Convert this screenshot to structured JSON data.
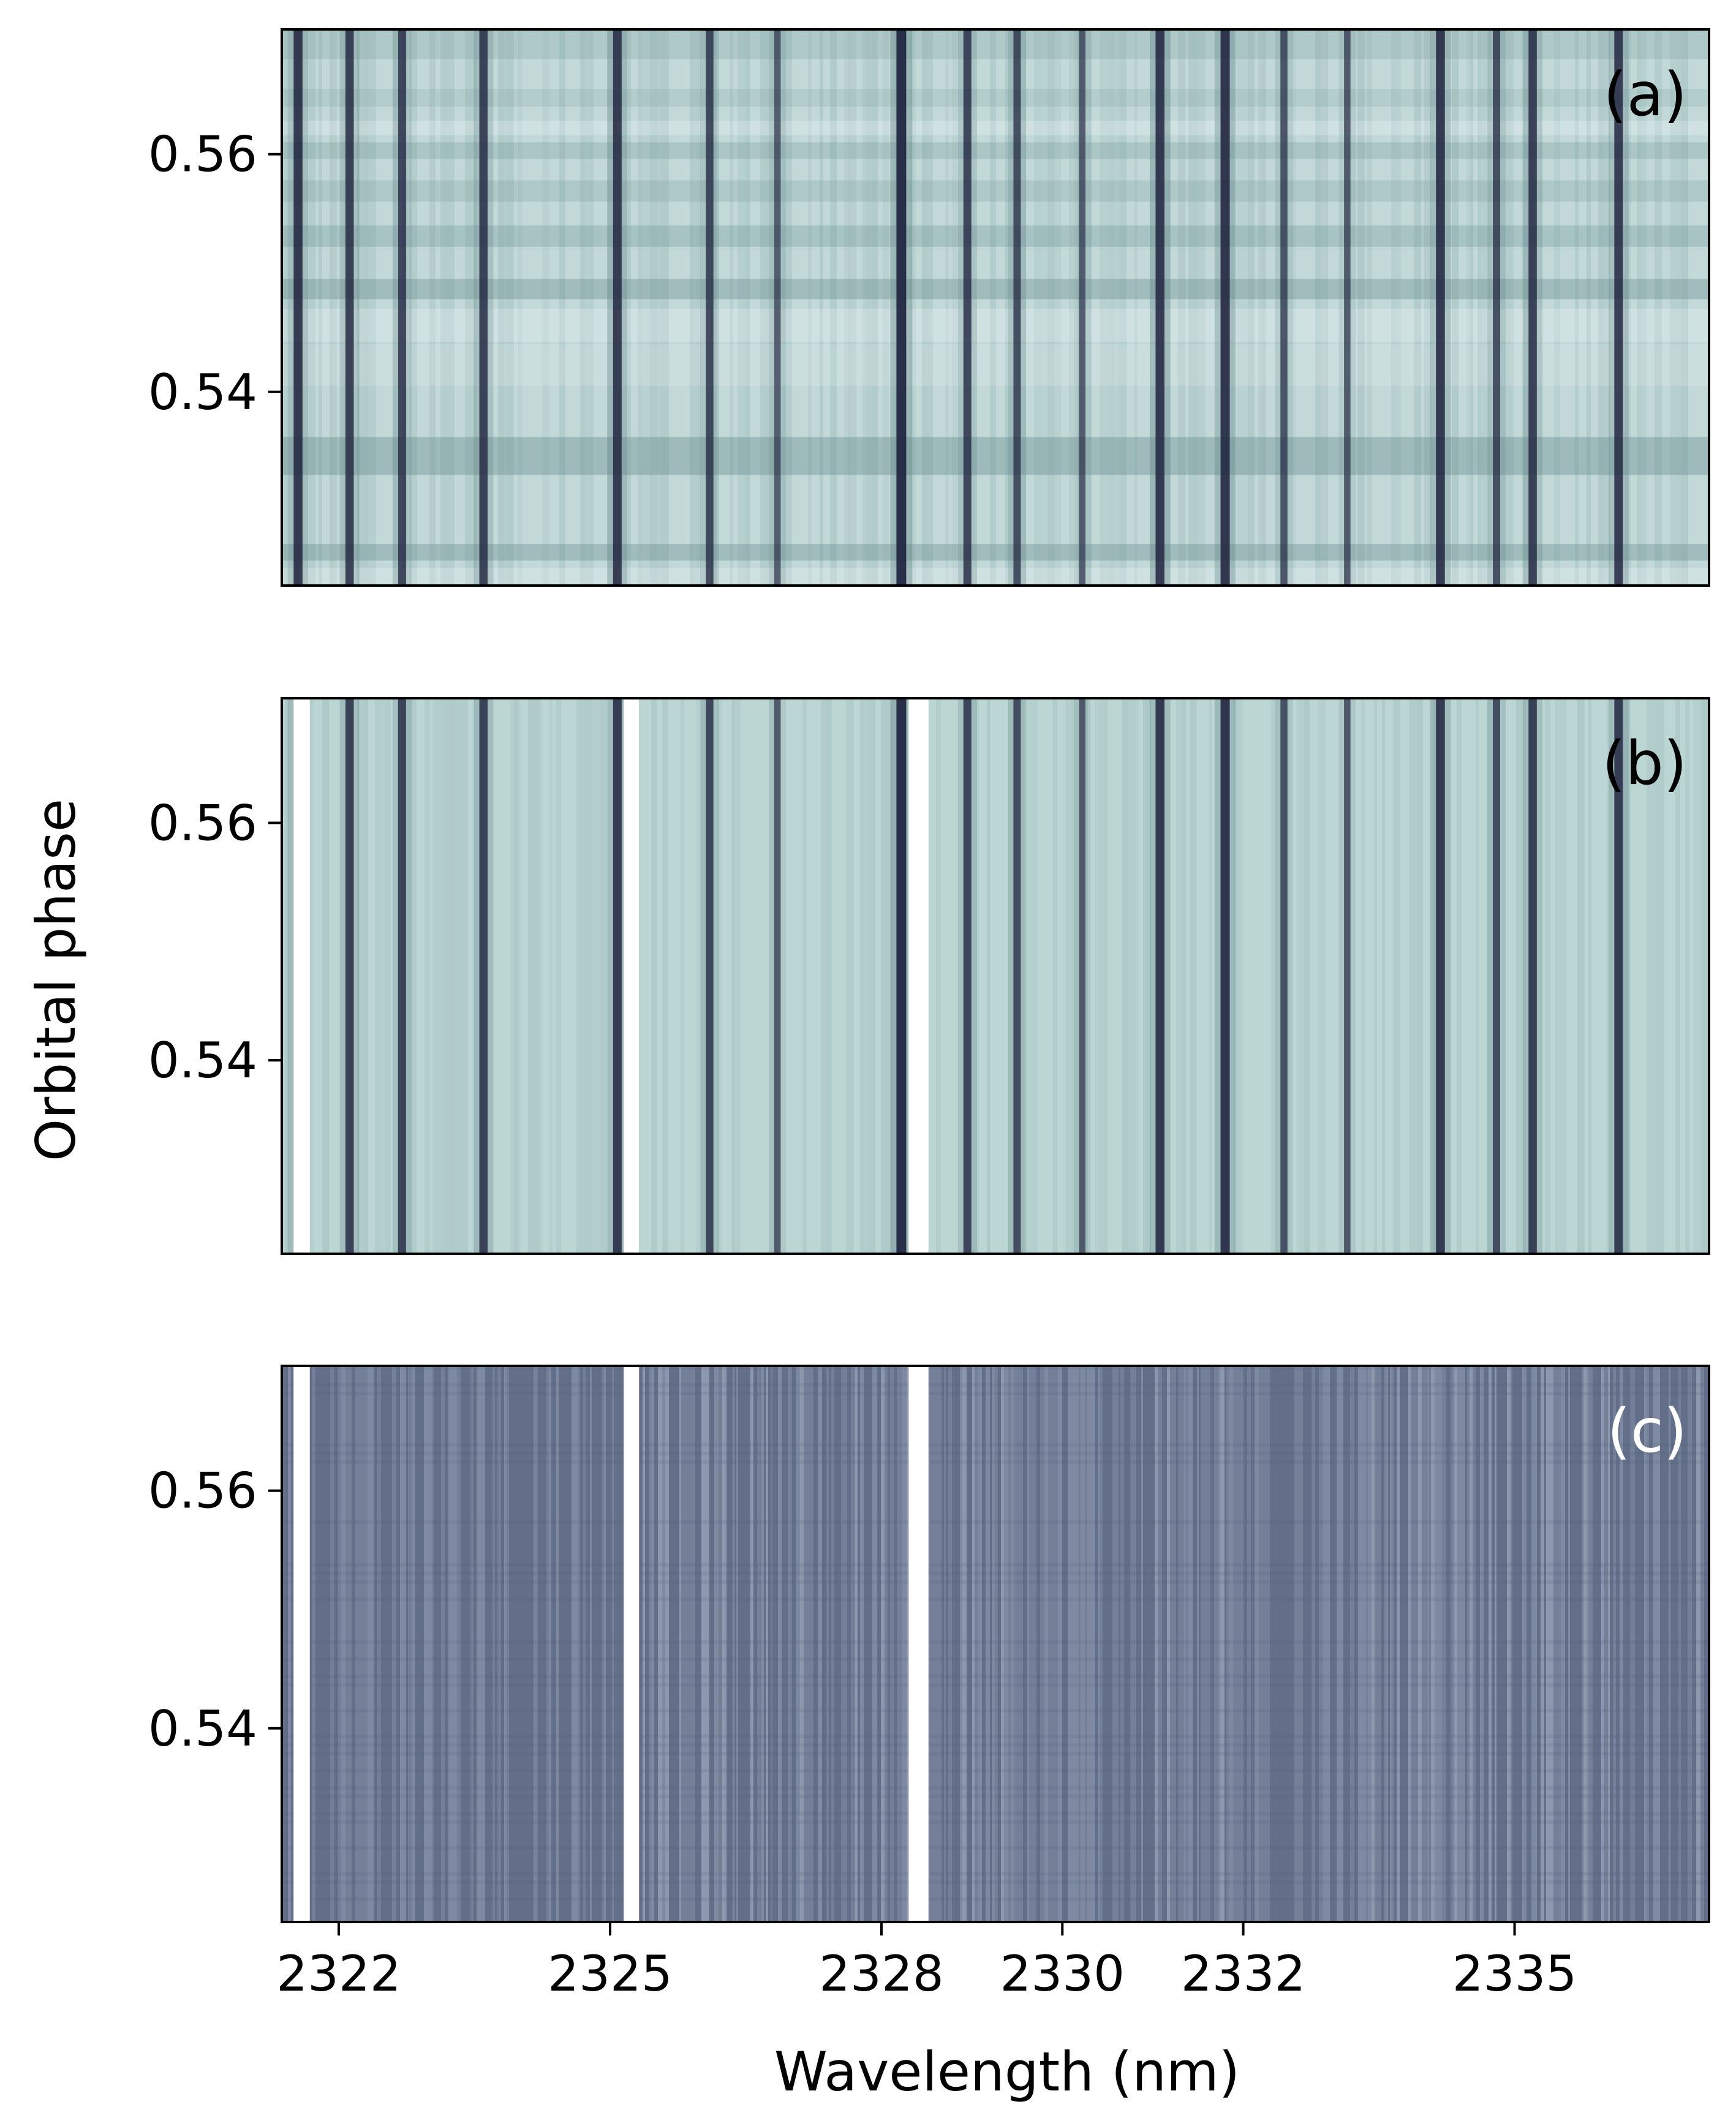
{
  "chart_data": {
    "type": "heatmap",
    "shared_xlabel": "Wavelength (nm)",
    "shared_ylabel": "Orbital phase",
    "x_tick_labels": [
      "2322",
      "2325",
      "2328",
      "2330",
      "2332",
      "2335"
    ],
    "x_tick_values": [
      2322,
      2325,
      2328,
      2330,
      2332,
      2335
    ],
    "xlim": [
      2321.37,
      2337.15
    ],
    "y_tick_labels": [
      "0.54",
      "0.56"
    ],
    "y_tick_values": [
      0.54,
      0.56
    ],
    "ylim": [
      0.5237,
      0.5705
    ],
    "masked_ranges_nm": [
      [
        2321.5,
        2321.68
      ],
      [
        2325.15,
        2325.32
      ],
      [
        2328.3,
        2328.52
      ]
    ],
    "telluric_lines_nm": [
      {
        "x": 2321.55,
        "depth": 0.85
      },
      {
        "x": 2322.12,
        "depth": 0.75
      },
      {
        "x": 2322.7,
        "depth": 0.7
      },
      {
        "x": 2323.6,
        "depth": 0.75
      },
      {
        "x": 2325.08,
        "depth": 0.8
      },
      {
        "x": 2326.1,
        "depth": 0.65
      },
      {
        "x": 2326.85,
        "depth": 0.45
      },
      {
        "x": 2328.22,
        "depth": 1.0
      },
      {
        "x": 2328.95,
        "depth": 0.7
      },
      {
        "x": 2329.5,
        "depth": 0.6
      },
      {
        "x": 2330.22,
        "depth": 0.45
      },
      {
        "x": 2331.08,
        "depth": 0.85
      },
      {
        "x": 2331.8,
        "depth": 0.9
      },
      {
        "x": 2332.45,
        "depth": 0.55
      },
      {
        "x": 2333.15,
        "depth": 0.45
      },
      {
        "x": 2334.18,
        "depth": 0.85
      },
      {
        "x": 2334.8,
        "depth": 0.6
      },
      {
        "x": 2335.2,
        "depth": 0.75
      },
      {
        "x": 2336.15,
        "depth": 0.8
      }
    ],
    "panels": [
      {
        "label": "(a)",
        "label_color": "#000000",
        "base_color": "#c2d9d8",
        "masked": false,
        "residual": false,
        "brightness_bands": [
          {
            "y0": 0.5237,
            "y1": 0.5252,
            "shade": 0.12
          },
          {
            "y0": 0.5258,
            "y1": 0.5272,
            "shade": -0.18
          },
          {
            "y0": 0.533,
            "y1": 0.5362,
            "shade": -0.2
          },
          {
            "y0": 0.5405,
            "y1": 0.544,
            "shade": 0.08
          },
          {
            "y0": 0.5442,
            "y1": 0.547,
            "shade": 0.12
          },
          {
            "y0": 0.5478,
            "y1": 0.5495,
            "shade": -0.18
          },
          {
            "y0": 0.5522,
            "y1": 0.554,
            "shade": -0.14
          },
          {
            "y0": 0.556,
            "y1": 0.5578,
            "shade": -0.1
          },
          {
            "y0": 0.5596,
            "y1": 0.561,
            "shade": -0.12
          },
          {
            "y0": 0.5616,
            "y1": 0.5628,
            "shade": 0.12
          },
          {
            "y0": 0.564,
            "y1": 0.5655,
            "shade": -0.08
          },
          {
            "y0": 0.568,
            "y1": 0.5705,
            "shade": -0.1
          }
        ]
      },
      {
        "label": "(b)",
        "label_color": "#000000",
        "base_color": "#bcd6d4",
        "masked": true,
        "residual": false,
        "brightness_bands": []
      },
      {
        "label": "(c)",
        "label_color": "#ffffff",
        "base_color": "#6a7590",
        "masked": true,
        "residual": true,
        "brightness_bands": []
      }
    ]
  }
}
